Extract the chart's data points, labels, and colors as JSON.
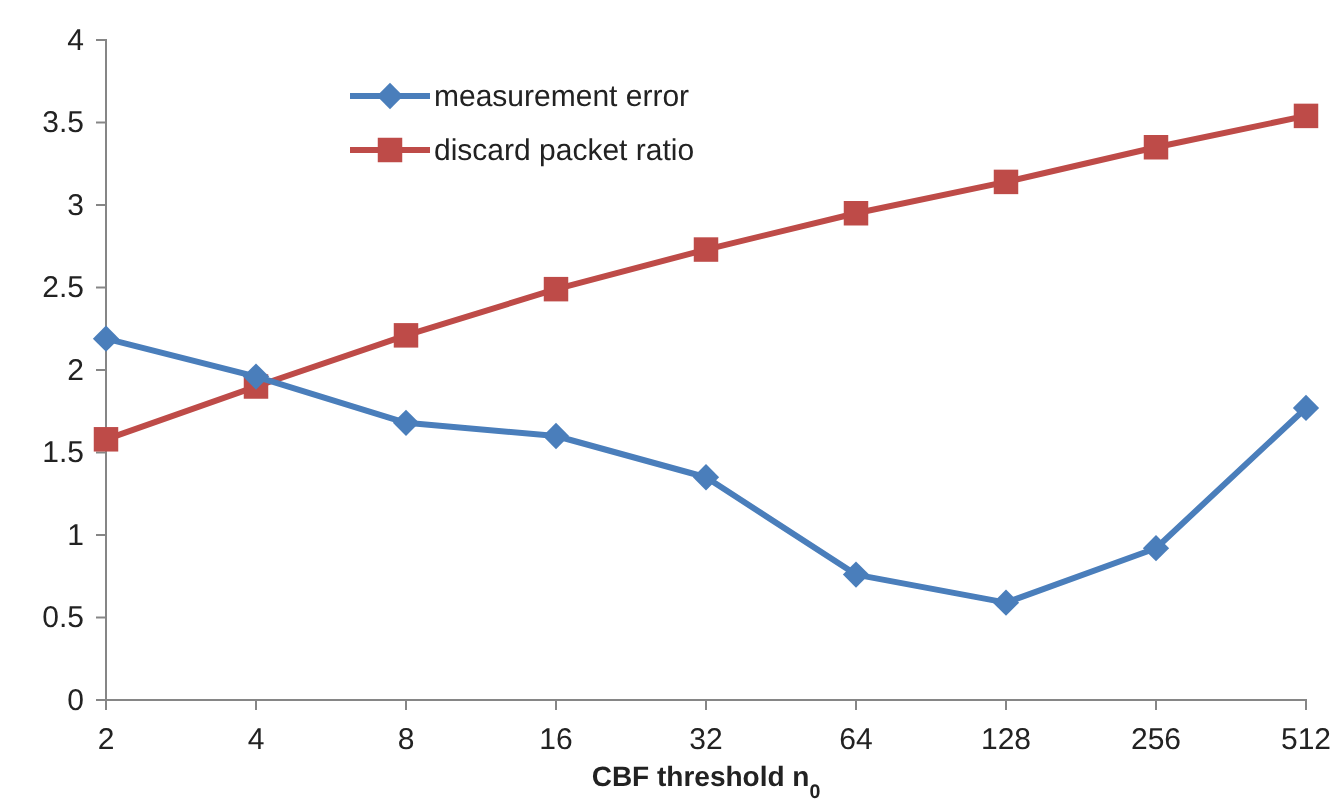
{
  "chart_data": {
    "type": "line",
    "xlabel": "CBF threshold n$_{0}$",
    "categories": [
      "2",
      "4",
      "8",
      "16",
      "32",
      "64",
      "128",
      "256",
      "512"
    ],
    "series": [
      {
        "name": "measurement error",
        "color": "#4a7ebb",
        "marker": "diamond",
        "values": [
          2.19,
          1.96,
          1.68,
          1.6,
          1.35,
          0.76,
          0.59,
          0.92,
          1.77
        ]
      },
      {
        "name": "discard packet ratio",
        "color": "#be4b48",
        "marker": "square",
        "values": [
          1.58,
          1.9,
          2.21,
          2.49,
          2.73,
          2.95,
          3.14,
          3.35,
          3.54
        ]
      }
    ],
    "ylim": [
      0,
      4
    ],
    "yticks": [
      0,
      0.5,
      1,
      1.5,
      2,
      2.5,
      3,
      3.5,
      4
    ],
    "grid": false,
    "legend": "top"
  }
}
